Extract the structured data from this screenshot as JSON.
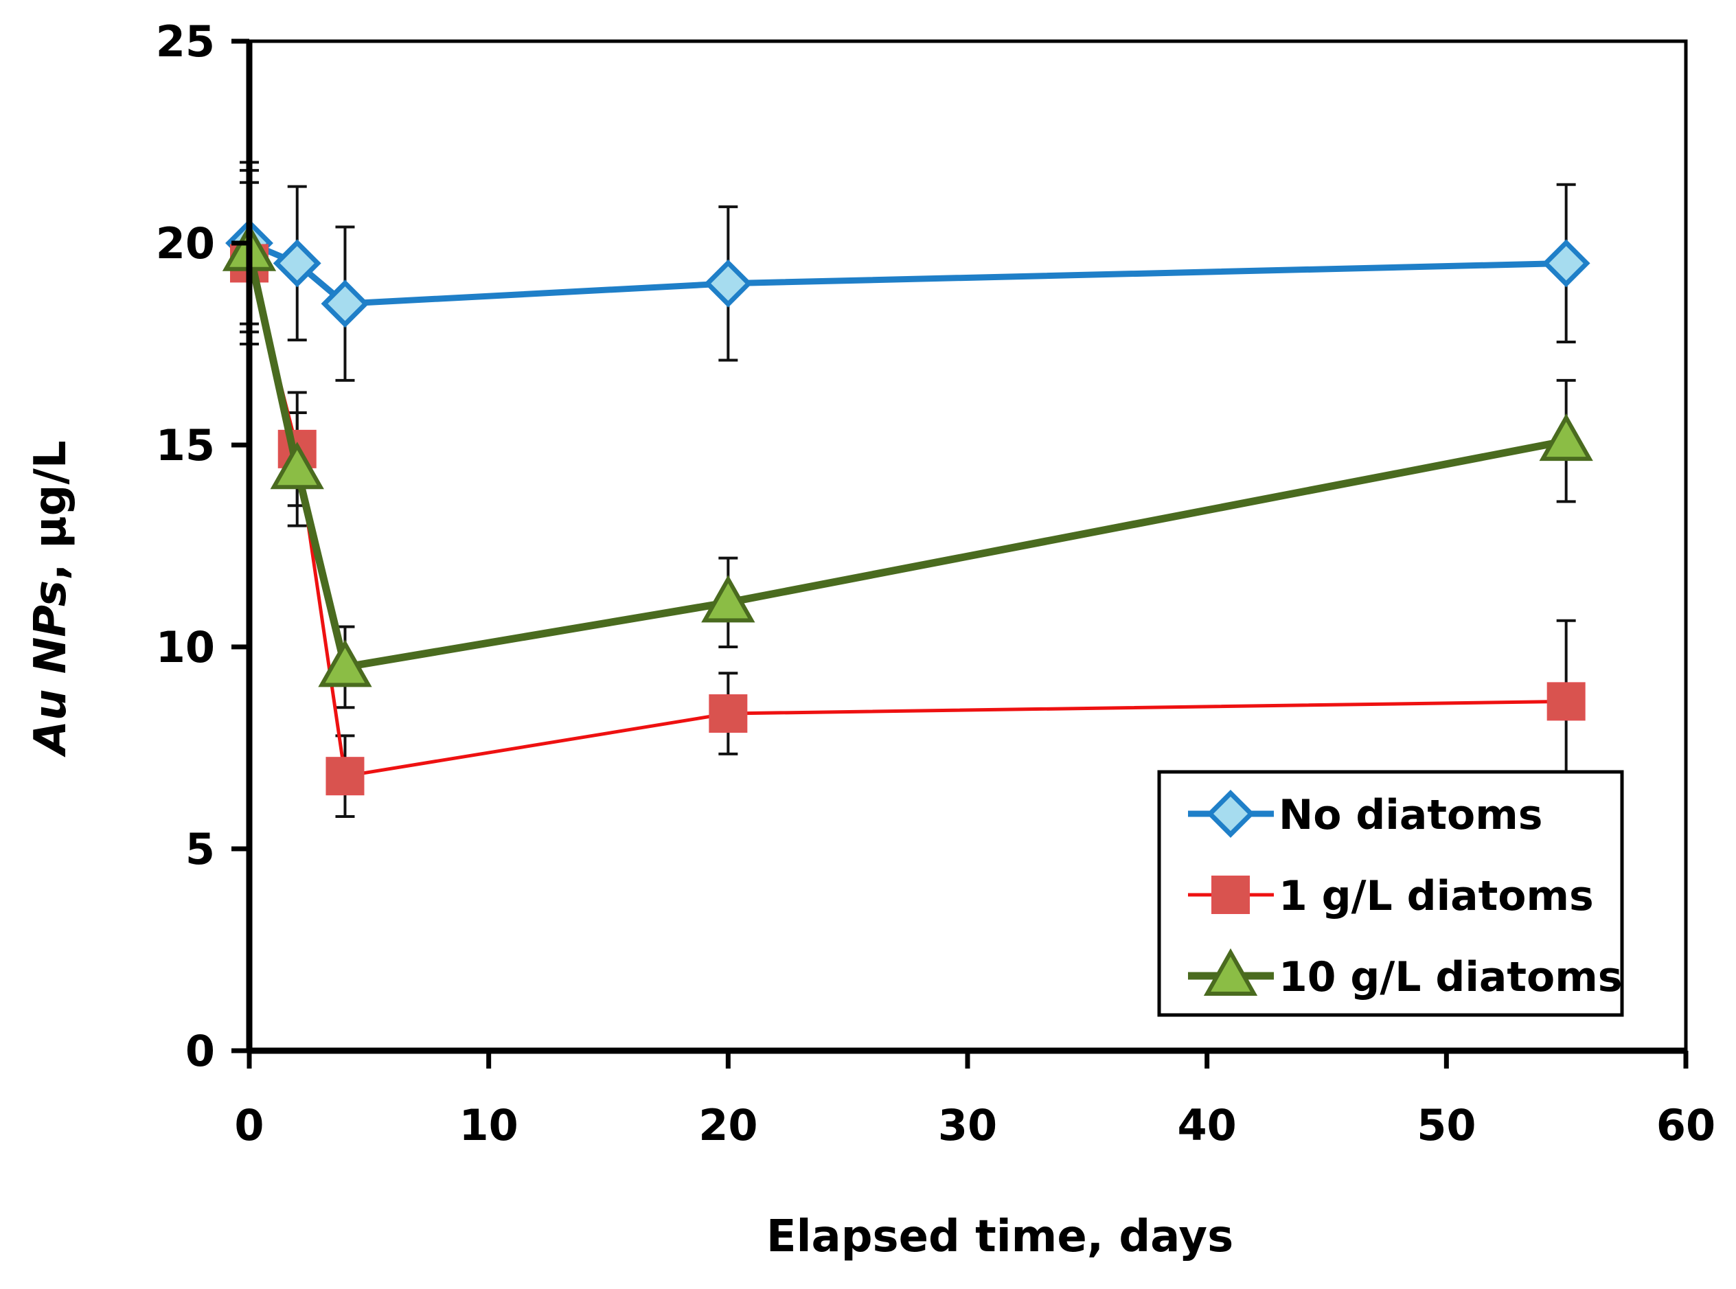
{
  "chart_data": {
    "type": "line",
    "title": "",
    "xlabel": "Elapsed time, days",
    "ylabel_italic": "Au NPs",
    "ylabel_rest": ", µg/L",
    "xlim": [
      0,
      60
    ],
    "ylim": [
      0,
      25
    ],
    "xticks": [
      0,
      10,
      20,
      30,
      40,
      50,
      60
    ],
    "yticks": [
      0,
      5,
      10,
      15,
      20,
      25
    ],
    "grid": false,
    "legend_position": "bottom-right",
    "x": [
      0,
      2,
      4,
      20,
      55
    ],
    "series": [
      {
        "name": "No diatoms",
        "marker": "diamond",
        "line_color": "#1f7fc8",
        "fill": "#a6dcef",
        "values": [
          20.0,
          19.5,
          18.5,
          19.0,
          19.5
        ],
        "errors": [
          2.0,
          1.9,
          1.9,
          1.9,
          1.95
        ]
      },
      {
        "name": "1 g/L diatoms",
        "marker": "square",
        "line_color": "#ee1111",
        "fill": "#d9534f",
        "values": [
          19.5,
          14.9,
          6.8,
          8.35,
          8.65
        ],
        "errors": [
          2.0,
          1.4,
          1.0,
          1.0,
          2.0
        ]
      },
      {
        "name": "10 g/L diatoms",
        "marker": "triangle",
        "line_color": "#4a6b1f",
        "fill": "#8bbd45",
        "values": [
          19.8,
          14.4,
          9.5,
          11.1,
          15.1
        ],
        "errors": [
          2.0,
          1.4,
          1.0,
          1.1,
          1.5
        ]
      }
    ]
  }
}
